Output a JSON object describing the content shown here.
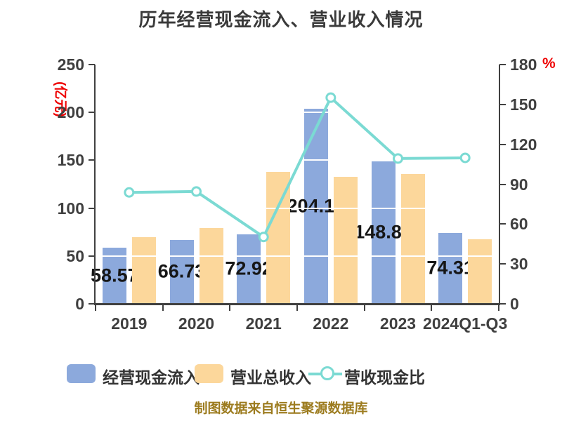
{
  "title": "历年经营现金流入、营业收入情况",
  "caption": {
    "text": "制图数据来自恒生聚源数据库",
    "color": "#9c7b1e"
  },
  "legend": [
    {
      "label": "经营现金流入",
      "type": "bar",
      "color": "#8ca9dc"
    },
    {
      "label": "营业总收入",
      "type": "bar",
      "color": "#fcd79b"
    },
    {
      "label": "营收现金比",
      "type": "line",
      "color": "#7bdad3"
    }
  ],
  "chart_data": {
    "type": "bar",
    "subtype": "grouped bars with overlay line",
    "categories": [
      "2019",
      "2020",
      "2021",
      "2022",
      "2023",
      "2024Q1-Q3"
    ],
    "series": [
      {
        "name": "经营现金流入",
        "type": "bar",
        "axis": "left",
        "color": "#8ca9dc",
        "values": [
          58.57,
          66.73,
          72.92,
          204.16,
          148.89,
          74.31
        ],
        "labels": [
          "58.57",
          "66.73",
          "72.92",
          "204.16",
          "148.89",
          "74.31"
        ]
      },
      {
        "name": "营业总收入",
        "type": "bar",
        "axis": "left",
        "color": "#fcd79b",
        "values": [
          69.5,
          79.0,
          138.0,
          132.5,
          136.0,
          67.5
        ]
      },
      {
        "name": "营收现金比",
        "type": "line",
        "axis": "right",
        "color": "#7bdad3",
        "values": [
          83.8,
          84.5,
          50.3,
          155.1,
          109.3,
          109.8
        ]
      }
    ],
    "left_axis": {
      "name": "(亿元)",
      "min": 0,
      "max": 250,
      "ticks": [
        0,
        50,
        100,
        150,
        200,
        250
      ],
      "name_color": "#ee0000"
    },
    "right_axis": {
      "name": "%",
      "min": 0,
      "max": 180,
      "ticks": [
        0,
        30,
        60,
        90,
        120,
        150,
        180
      ],
      "name_color": "#ee0000"
    },
    "grid": true,
    "gridline_color": "#ffffff",
    "axis_color": "#404040",
    "tick_label_color": "#3f3f3f",
    "legend_position": "bottom"
  }
}
